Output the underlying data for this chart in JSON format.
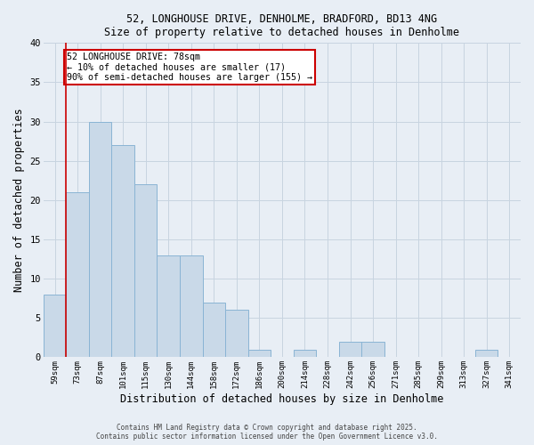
{
  "title_line1": "52, LONGHOUSE DRIVE, DENHOLME, BRADFORD, BD13 4NG",
  "title_line2": "Size of property relative to detached houses in Denholme",
  "xlabel": "Distribution of detached houses by size in Denholme",
  "ylabel": "Number of detached properties",
  "bar_labels": [
    "59sqm",
    "73sqm",
    "87sqm",
    "101sqm",
    "115sqm",
    "130sqm",
    "144sqm",
    "158sqm",
    "172sqm",
    "186sqm",
    "200sqm",
    "214sqm",
    "228sqm",
    "242sqm",
    "256sqm",
    "271sqm",
    "285sqm",
    "299sqm",
    "313sqm",
    "327sqm",
    "341sqm"
  ],
  "bar_values": [
    8,
    21,
    30,
    27,
    22,
    13,
    13,
    7,
    6,
    1,
    0,
    1,
    0,
    2,
    2,
    0,
    0,
    0,
    0,
    1,
    0
  ],
  "bar_color": "#c9d9e8",
  "bar_edge_color": "#8ab4d4",
  "grid_color": "#c8d4e0",
  "background_color": "#e8eef5",
  "red_line_x": 0.5,
  "annotation_text": "52 LONGHOUSE DRIVE: 78sqm\n← 10% of detached houses are smaller (17)\n90% of semi-detached houses are larger (155) →",
  "annotation_box_color": "#ffffff",
  "annotation_border_color": "#cc0000",
  "footer_line1": "Contains HM Land Registry data © Crown copyright and database right 2025.",
  "footer_line2": "Contains public sector information licensed under the Open Government Licence v3.0.",
  "ylim": [
    0,
    40
  ],
  "yticks": [
    0,
    5,
    10,
    15,
    20,
    25,
    30,
    35,
    40
  ],
  "figwidth": 6.0,
  "figheight": 5.0,
  "dpi": 100
}
